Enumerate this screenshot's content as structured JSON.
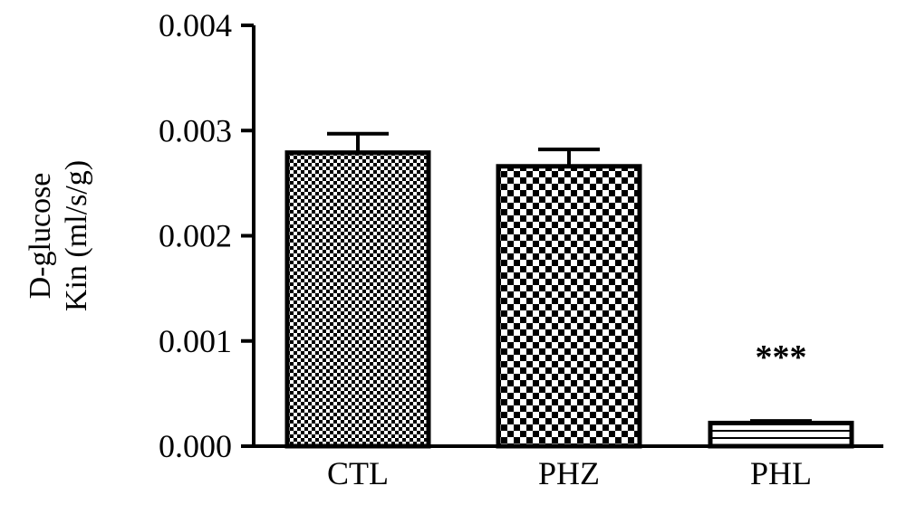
{
  "chart_data": {
    "type": "bar",
    "title": "",
    "xlabel": "",
    "ylabel_lines": [
      "D-glucose",
      "Kin (ml/s/g)"
    ],
    "ylim": [
      0,
      0.004
    ],
    "yticks": [
      "0.000",
      "0.001",
      "0.002",
      "0.003",
      "0.004"
    ],
    "categories": [
      "CTL",
      "PHZ",
      "PHL"
    ],
    "values": [
      0.00279,
      0.00266,
      0.00022
    ],
    "errors": [
      0.00018,
      0.00016,
      2e-05
    ],
    "annotations": [
      {
        "category": "PHL",
        "text": "***"
      }
    ],
    "grid": false,
    "legend": "none",
    "patterns": [
      "fine-checker",
      "coarse-checker",
      "horizontal-stripes"
    ],
    "colors": {
      "bar_stroke": "#000000",
      "pattern_dark": "#000000",
      "pattern_light": "#ffffff"
    }
  }
}
